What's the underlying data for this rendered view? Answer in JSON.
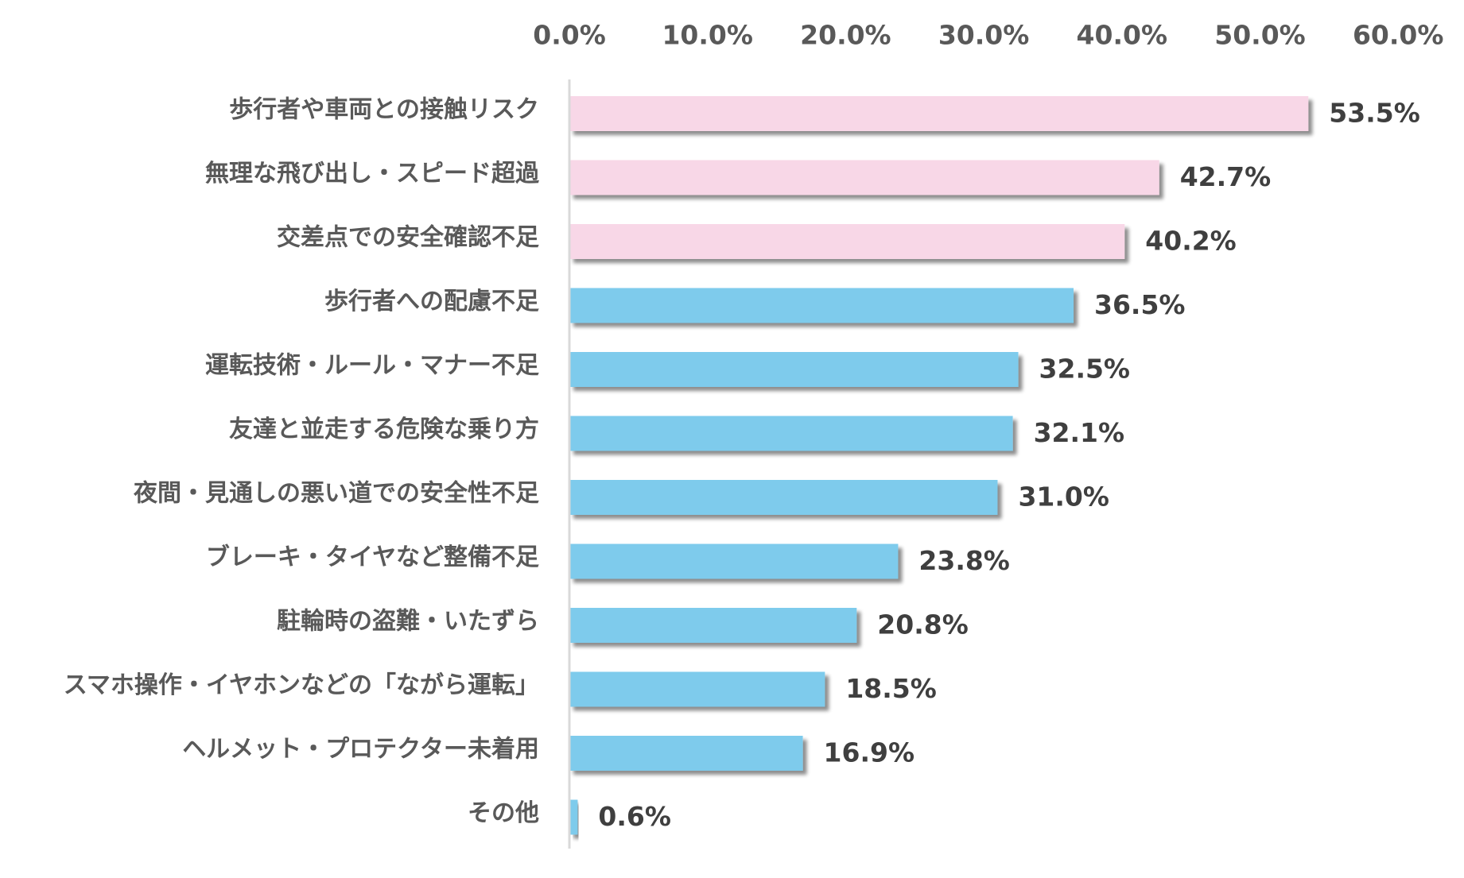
{
  "chart_data": {
    "type": "bar",
    "orientation": "horizontal",
    "title": "",
    "xlabel": "",
    "ylabel": "",
    "xlim": [
      0,
      60
    ],
    "ticks": [
      "0.0%",
      "10.0%",
      "20.0%",
      "30.0%",
      "40.0%",
      "50.0%",
      "60.0%"
    ],
    "tick_values": [
      0,
      10,
      20,
      30,
      40,
      50,
      60
    ],
    "categories": [
      "歩行者や車両との接触リスク",
      "無理な飛び出し・スピード超過",
      "交差点での安全確認不足",
      "歩行者への配慮不足",
      "運転技術・ルール・マナー不足",
      "友達と並走する危険な乗り方",
      "夜間・見通しの悪い道での安全性不足",
      "ブレーキ・タイヤなど整備不足",
      "駐輪時の盗難・いたずら",
      "スマホ操作・イヤホンなどの「ながら運転」",
      "ヘルメット・プロテクター未着用",
      "その他"
    ],
    "values": [
      53.5,
      42.7,
      40.2,
      36.5,
      32.5,
      32.1,
      31.0,
      23.8,
      20.8,
      18.5,
      16.9,
      0.6
    ],
    "value_labels": [
      "53.5%",
      "42.7%",
      "40.2%",
      "36.5%",
      "32.5%",
      "32.1%",
      "31.0%",
      "23.8%",
      "20.8%",
      "18.5%",
      "16.9%",
      "0.6%"
    ],
    "highlight_count": 3,
    "colors": {
      "highlight": "#f8d7e7",
      "normal": "#7ecbec",
      "shadow": "#bfbfbf",
      "axis": "#d9d9d9"
    },
    "grid": false,
    "legend": "none"
  }
}
